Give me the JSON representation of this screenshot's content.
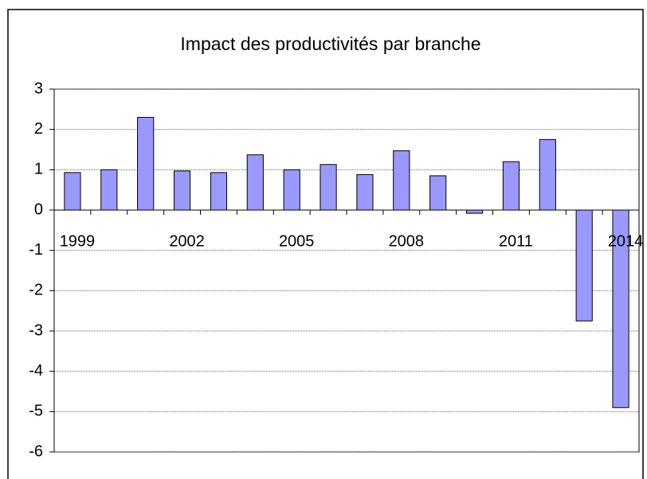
{
  "chart_data": {
    "type": "bar",
    "title": "Impact des productivités par branche",
    "categories": [
      "1999",
      null,
      null,
      "2002",
      null,
      null,
      "2005",
      null,
      null,
      "2008",
      null,
      null,
      "2011",
      null,
      null,
      "2014"
    ],
    "values": [
      0.93,
      1.0,
      2.3,
      0.97,
      0.93,
      1.37,
      1.0,
      1.13,
      0.88,
      1.47,
      0.85,
      -0.08,
      1.2,
      1.75,
      -2.75,
      -4.9
    ],
    "color": "#9999ff",
    "ylim": [
      -6,
      3
    ],
    "yticks": [
      -6,
      -5,
      -4,
      -3,
      -2,
      -1,
      0,
      1,
      2,
      3
    ],
    "grid": true
  }
}
